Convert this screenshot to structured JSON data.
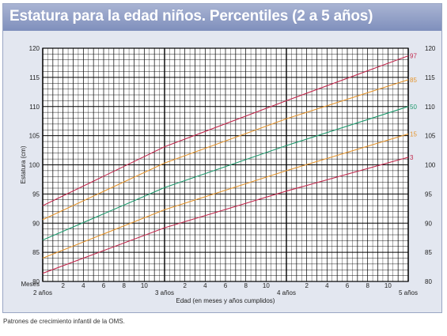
{
  "footnote": "Patrones de crecimiento infantil de la OMS.",
  "chart_data": {
    "type": "line",
    "title": "Estatura para la edad niños. Percentiles (2 a 5 años)",
    "xlabel": "Edad (en meses y años cumplidos)",
    "ylabel": "Estatura (cm)",
    "months_label": "Meses",
    "xlim": [
      24,
      60
    ],
    "ylim": [
      80,
      120
    ],
    "y_ticks": [
      "80",
      "85",
      "90",
      "95",
      "100",
      "105",
      "110",
      "115",
      "120"
    ],
    "month_ticks": [
      "2",
      "4",
      "6",
      "8",
      "10",
      "2",
      "4",
      "6",
      "8",
      "10",
      "2",
      "4",
      "6",
      "8",
      "10"
    ],
    "year_ticks": [
      {
        "label": "2 años",
        "x": 24
      },
      {
        "label": "3 años",
        "x": 36
      },
      {
        "label": "4 años",
        "x": 48
      },
      {
        "label": "5 años",
        "x": 60
      }
    ],
    "grid": true,
    "legend": "right-end labels",
    "x": [
      24,
      36,
      48,
      60
    ],
    "series": [
      {
        "name": "97",
        "color": "#c22a4e",
        "values": [
          93.0,
          103.1,
          111.0,
          118.7
        ]
      },
      {
        "name": "85",
        "color": "#e5952e",
        "values": [
          90.6,
          100.3,
          107.9,
          114.6
        ]
      },
      {
        "name": "50",
        "color": "#1f9a6e",
        "values": [
          87.1,
          96.1,
          103.3,
          110.0
        ]
      },
      {
        "name": "15",
        "color": "#e5952e",
        "values": [
          84.0,
          92.3,
          99.0,
          105.3
        ]
      },
      {
        "name": "3",
        "color": "#c22a4e",
        "values": [
          81.4,
          89.2,
          95.5,
          101.3
        ]
      }
    ]
  }
}
